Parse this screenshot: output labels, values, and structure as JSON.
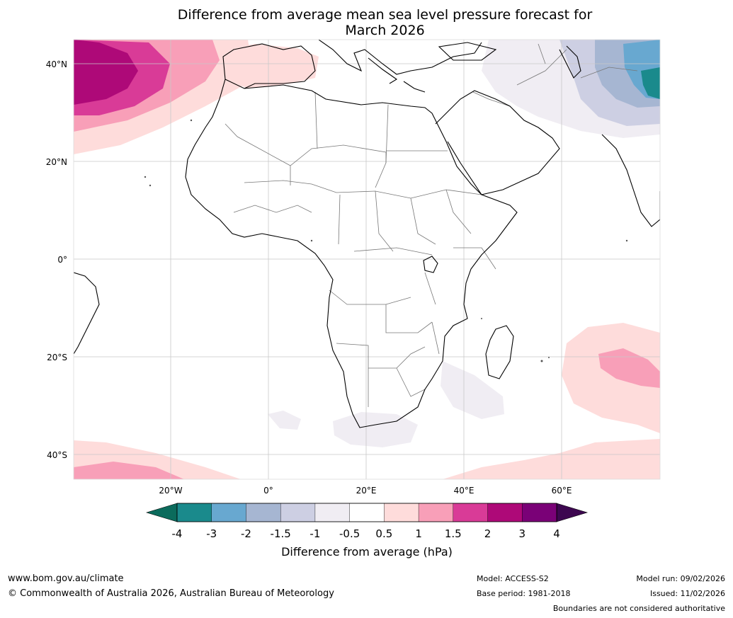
{
  "title_line1": "Difference from average mean sea level pressure forecast for",
  "title_line2": "March 2026",
  "map": {
    "lat_labels": [
      "40°N",
      "20°N",
      "0°",
      "20°S",
      "40°S"
    ],
    "lon_labels": [
      "20°W",
      "0°",
      "20°E",
      "40°E",
      "60°E"
    ],
    "region": "Africa"
  },
  "colorbar": {
    "title": "Difference from average (hPa)",
    "tick_labels": [
      "-4",
      "-3",
      "-2",
      "-1.5",
      "-1",
      "-0.5",
      "0.5",
      "1",
      "1.5",
      "2",
      "3",
      "4"
    ],
    "under_color": "#0b6b5c",
    "over_color": "#3d0750",
    "bin_colors": [
      "#1a8a8c",
      "#68a8d0",
      "#a6b6d2",
      "#cdcfe3",
      "#f0edf3",
      "#ffffff",
      "#fedcdb",
      "#f89fb8",
      "#d93b97",
      "#ae0978",
      "#7a0177"
    ]
  },
  "footer": {
    "url": "www.bom.gov.au/climate",
    "copyright": "© Commonwealth of Australia 2026, Australian Bureau of Meteorology",
    "model": "Model: ACCESS-S2",
    "base_period": "Base period: 1981-2018",
    "model_run": "Model run: 09/02/2026",
    "issued": "Issued: 11/02/2026",
    "disclaimer": "Boundaries are not considered authoritative"
  }
}
